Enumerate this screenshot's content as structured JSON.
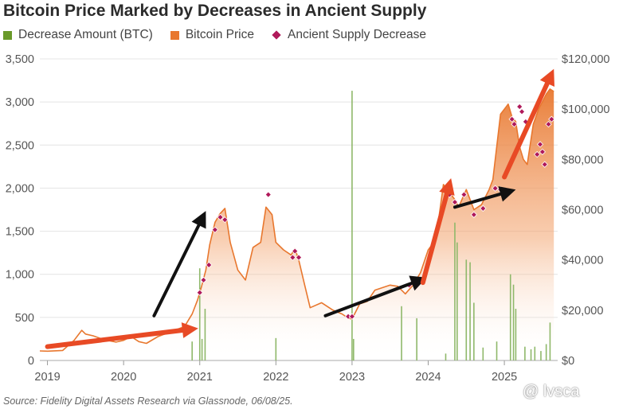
{
  "chart_data": {
    "type": "line",
    "title": "Bitcoin Price Marked by Decreases in Ancient Supply",
    "legend": [
      {
        "label": "Decrease Amount (BTC)",
        "color": "#6a9a2a",
        "marker": "square"
      },
      {
        "label": "Bitcoin Price",
        "color": "#e8772e",
        "marker": "square"
      },
      {
        "label": "Ancient Supply Decrease",
        "color": "#b0195a",
        "marker": "diamond"
      }
    ],
    "legend_position": "top-left",
    "grid": true,
    "x_ticks": [
      "2019",
      "2020",
      "2021",
      "2022",
      "2023",
      "2024",
      "2025"
    ],
    "x_range": [
      2018.9,
      2025.7
    ],
    "y_left": {
      "label": "",
      "range": [
        0,
        3500
      ],
      "ticks": [
        "0",
        "500",
        "1,000",
        "1,500",
        "2,000",
        "2,500",
        "3,000",
        "3,500"
      ]
    },
    "y_right": {
      "label": "",
      "range": [
        0,
        120000
      ],
      "ticks": [
        "$0",
        "$20,000",
        "$40,000",
        "$60,000",
        "$80,000",
        "$100,000",
        "$120,000"
      ]
    },
    "series": [
      {
        "name": "Bitcoin Price",
        "axis": "right",
        "x": [
          2018.9,
          2019.0,
          2019.2,
          2019.35,
          2019.45,
          2019.5,
          2019.6,
          2019.75,
          2019.9,
          2020.0,
          2020.1,
          2020.2,
          2020.3,
          2020.45,
          2020.6,
          2020.8,
          2020.9,
          2020.97,
          2021.02,
          2021.08,
          2021.13,
          2021.2,
          2021.27,
          2021.33,
          2021.4,
          2021.5,
          2021.6,
          2021.7,
          2021.8,
          2021.87,
          2021.95,
          2022.0,
          2022.1,
          2022.2,
          2022.25,
          2022.3,
          2022.37,
          2022.45,
          2022.6,
          2022.75,
          2022.87,
          2022.95,
          2023.0,
          2023.1,
          2023.2,
          2023.3,
          2023.5,
          2023.6,
          2023.7,
          2023.8,
          2023.9,
          2024.0,
          2024.1,
          2024.2,
          2024.3,
          2024.35,
          2024.4,
          2024.5,
          2024.6,
          2024.7,
          2024.8,
          2024.85,
          2024.9,
          2024.95,
          2025.05,
          2025.1,
          2025.15,
          2025.2,
          2025.25,
          2025.3,
          2025.38,
          2025.45,
          2025.5,
          2025.55,
          2025.6,
          2025.65
        ],
        "values": [
          3800,
          3700,
          4000,
          8000,
          12000,
          10500,
          9800,
          8200,
          7300,
          8000,
          9500,
          7500,
          6800,
          9500,
          11200,
          13500,
          18500,
          24000,
          29000,
          36000,
          46000,
          55000,
          58500,
          60500,
          47000,
          36000,
          32000,
          45000,
          47000,
          61000,
          58000,
          47000,
          44000,
          42000,
          44500,
          40000,
          31000,
          21000,
          23000,
          20000,
          18500,
          16800,
          16500,
          22500,
          23500,
          28000,
          30000,
          29500,
          26500,
          30000,
          35000,
          44000,
          48000,
          70000,
          66000,
          64000,
          61000,
          68000,
          60000,
          62000,
          68000,
          72000,
          85000,
          98000,
          102000,
          97000,
          95000,
          85000,
          80000,
          78000,
          94000,
          100000,
          103000,
          106000,
          108000,
          107000
        ]
      },
      {
        "name": "Decrease Amount (BTC)",
        "axis": "left",
        "type": "bar",
        "x": [
          2020.9,
          2021.0,
          2021.03,
          2021.07,
          2022.0,
          2023.0,
          2023.02,
          2023.65,
          2023.85,
          2024.23,
          2024.35,
          2024.38,
          2024.5,
          2024.55,
          2024.6,
          2024.72,
          2024.9,
          2025.08,
          2025.12,
          2025.15,
          2025.27,
          2025.35,
          2025.4,
          2025.48,
          2025.55,
          2025.6
        ],
        "values": [
          220,
          1070,
          250,
          600,
          260,
          3130,
          250,
          630,
          490,
          80,
          1600,
          1370,
          1170,
          1140,
          670,
          150,
          220,
          1000,
          880,
          600,
          160,
          130,
          160,
          110,
          190,
          440
        ]
      },
      {
        "name": "Ancient Supply Decrease",
        "axis": "right",
        "type": "scatter",
        "x": [
          2021.0,
          2021.05,
          2021.12,
          2021.2,
          2021.27,
          2021.33,
          2021.9,
          2022.22,
          2022.25,
          2022.3,
          2022.95,
          2023.0,
          2023.75,
          2024.28,
          2024.35,
          2024.47,
          2024.6,
          2024.72,
          2024.88,
          2024.95,
          2025.1,
          2025.13,
          2025.2,
          2025.23,
          2025.28,
          2025.43,
          2025.47,
          2025.5,
          2025.53,
          2025.58,
          2025.62
        ],
        "values": [
          27000,
          32000,
          38000,
          52000,
          57000,
          56000,
          66000,
          41000,
          43500,
          41000,
          17500,
          17500,
          30000,
          66000,
          63000,
          66000,
          58000,
          60500,
          68500,
          68000,
          96000,
          94000,
          101000,
          99000,
          95000,
          82000,
          86000,
          83000,
          78000,
          94000,
          96000
        ]
      }
    ],
    "annotations": [
      {
        "type": "arrow",
        "color": "#e84a25",
        "from": [
          2019.0,
          5500
        ],
        "to": [
          2020.98,
          12800
        ]
      },
      {
        "type": "arrow",
        "color": "#111111",
        "from": [
          2020.4,
          17800
        ],
        "to": [
          2021.08,
          59500
        ]
      },
      {
        "type": "arrow",
        "color": "#111111",
        "from": [
          2022.65,
          17800
        ],
        "to": [
          2023.98,
          33000
        ]
      },
      {
        "type": "arrow",
        "color": "#e84a25",
        "from": [
          2023.93,
          31000
        ],
        "to": [
          2024.3,
          72500
        ]
      },
      {
        "type": "arrow",
        "color": "#111111",
        "from": [
          2024.35,
          61000
        ],
        "to": [
          2025.15,
          68000
        ]
      },
      {
        "type": "arrow",
        "color": "#e84a25",
        "from": [
          2025.0,
          73000
        ],
        "to": [
          2025.65,
          116000
        ]
      }
    ]
  },
  "source": "Source: Fidelity Digital Assets Research via Glassnode, 06/08/25.",
  "watermark": "@ lvsca",
  "colors": {
    "price": "#e8772e",
    "bars": "#8fb86a",
    "diamond": "#b0195a",
    "grid": "#e4e4e4",
    "red_arrow": "#e84a25",
    "black_arrow": "#111111"
  }
}
